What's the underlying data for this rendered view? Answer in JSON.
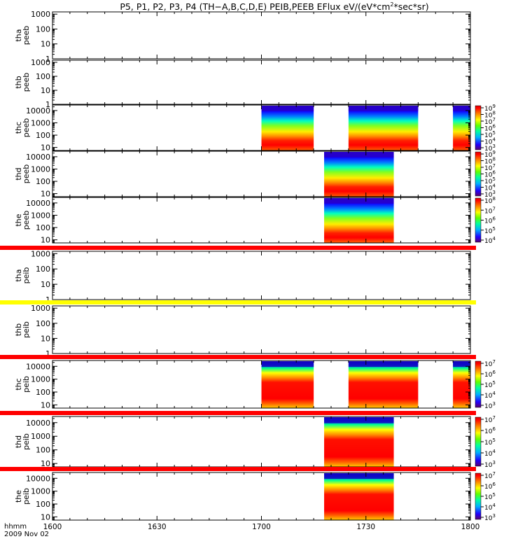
{
  "title": "P5, P1, P2, P3, P4 (TH−A,B,C,D,E) PEIB,PEEB EFlux eV/(eV*cm",
  "title_sup": "2",
  "title_tail": "*sec*sr)",
  "colors": {
    "bar_red": "#ff0000",
    "bar_yellow": "#ffff00",
    "gap_white": "#ffffff"
  },
  "chart_data": {
    "type": "heatmap",
    "x_axis": {
      "label_line1": "hhmm",
      "label_line2": "2009 Nov 02",
      "ticks": [
        "1600",
        "1630",
        "1700",
        "1730",
        "1800"
      ],
      "tick_values": [
        1600,
        1630,
        1700,
        1730,
        1800
      ],
      "range_minutes": [
        0,
        120
      ]
    },
    "panels": [
      {
        "probe": "tha",
        "species": "peeb",
        "yticks": [
          "1000",
          "100",
          "10",
          "1"
        ],
        "ylog": [
          0,
          3.15
        ],
        "has_colorbar": false,
        "segments": [],
        "bar_above": null
      },
      {
        "probe": "thb",
        "species": "peeb",
        "yticks": [
          "1000",
          "100",
          "10",
          "1"
        ],
        "ylog": [
          0,
          3.15
        ],
        "has_colorbar": false,
        "segments": [],
        "bar_above": null
      },
      {
        "probe": "thc",
        "species": "peeb",
        "yticks": [
          "10000",
          "1000",
          "100",
          "10"
        ],
        "ylog": [
          0.75,
          4.45
        ],
        "has_colorbar": true,
        "cbar_ticks": [
          "10⁹",
          "10⁸",
          "10⁷",
          "10⁶",
          "10⁵",
          "10⁴",
          "10³"
        ],
        "segments": [
          [
            60,
            75
          ],
          [
            85,
            105
          ],
          [
            115,
            120
          ]
        ],
        "bar_above": null
      },
      {
        "probe": "thd",
        "species": "peeb",
        "yticks": [
          "10000",
          "1000",
          "100",
          "10"
        ],
        "ylog": [
          0.75,
          4.45
        ],
        "has_colorbar": true,
        "cbar_ticks": [
          "10⁹",
          "10⁸",
          "10⁷",
          "10⁶",
          "10⁵",
          "10⁴",
          "10³"
        ],
        "segments": [
          [
            78,
            98
          ]
        ],
        "bar_above": null
      },
      {
        "probe": "the",
        "species": "peeb",
        "yticks": [
          "10000",
          "1000",
          "100",
          "10"
        ],
        "ylog": [
          0.75,
          4.45
        ],
        "has_colorbar": true,
        "cbar_ticks": [
          "10⁸",
          "10⁷",
          "10⁶",
          "10⁵",
          "10⁴"
        ],
        "segments": [
          [
            78,
            98
          ]
        ],
        "bar_above": null
      },
      {
        "probe": "tha",
        "species": "peib",
        "yticks": [
          "1000",
          "100",
          "10",
          "1"
        ],
        "ylog": [
          0,
          3.15
        ],
        "has_colorbar": false,
        "segments": [],
        "bar_above": "red"
      },
      {
        "probe": "thb",
        "species": "peib",
        "yticks": [
          "1000",
          "100",
          "10",
          "1"
        ],
        "ylog": [
          0,
          3.15
        ],
        "has_colorbar": false,
        "segments": [],
        "bar_above": "yellow"
      },
      {
        "probe": "thc",
        "species": "peib",
        "yticks": [
          "10000",
          "1000",
          "100",
          "10"
        ],
        "ylog": [
          0.75,
          4.45
        ],
        "has_colorbar": true,
        "cbar_ticks": [
          "10⁷",
          "10⁶",
          "10⁵",
          "10⁴",
          "10³"
        ],
        "segments": [
          [
            60,
            75
          ],
          [
            85,
            105
          ],
          [
            115,
            120
          ]
        ],
        "bar_above": "red"
      },
      {
        "probe": "thd",
        "species": "peib",
        "yticks": [
          "10000",
          "1000",
          "100",
          "10"
        ],
        "ylog": [
          0.75,
          4.45
        ],
        "has_colorbar": true,
        "cbar_ticks": [
          "10⁷",
          "10⁶",
          "10⁵",
          "10⁴",
          "10³"
        ],
        "segments": [
          [
            78,
            98
          ]
        ],
        "bar_above": "red"
      },
      {
        "probe": "the",
        "species": "peib",
        "yticks": [
          "10000",
          "1000",
          "100",
          "10"
        ],
        "ylog": [
          0.75,
          4.45
        ],
        "has_colorbar": true,
        "cbar_ticks": [
          "10⁷",
          "10⁶",
          "10⁵",
          "10⁴",
          "10³"
        ],
        "segments": [
          [
            78,
            98
          ]
        ],
        "bar_above": "red"
      }
    ]
  }
}
